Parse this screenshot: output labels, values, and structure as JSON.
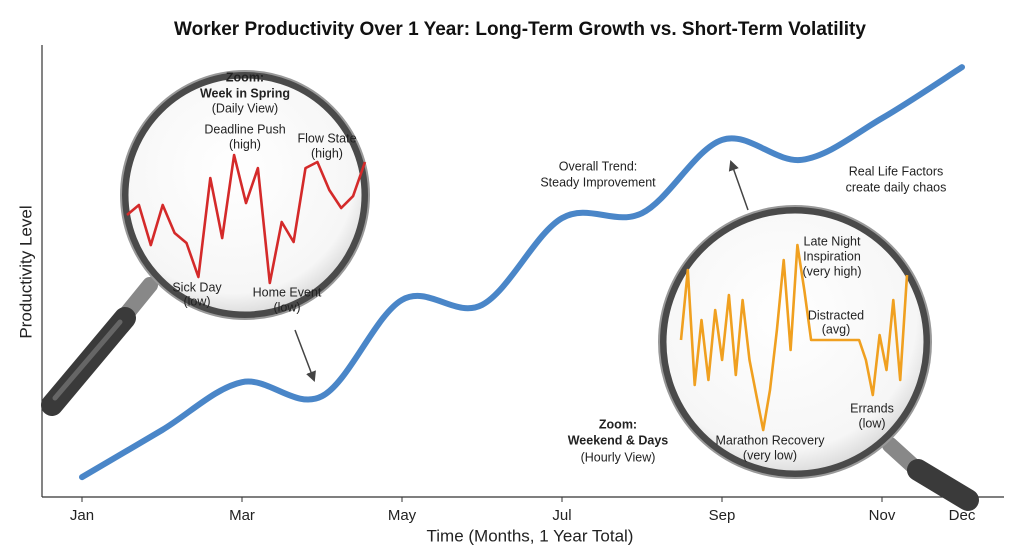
{
  "chart_data": {
    "type": "line",
    "title": "Worker Productivity Over 1 Year: Long-Term Growth vs. Short-Term Volatility",
    "x_label": "Time (Months, 1 Year Total)",
    "y_label": "Productivity Level",
    "xlim": [
      0.5,
      12.5
    ],
    "ylim": [
      0,
      100
    ],
    "xticks": [
      {
        "value": 1,
        "label": "Jan"
      },
      {
        "value": 3,
        "label": "Mar"
      },
      {
        "value": 5,
        "label": "May"
      },
      {
        "value": 7,
        "label": "Jul"
      },
      {
        "value": 9,
        "label": "Sep"
      },
      {
        "value": 11,
        "label": "Nov"
      },
      {
        "value": 12,
        "label": "Dec"
      }
    ],
    "series": [
      {
        "color": "#4a86c8",
        "x": [
          1,
          2,
          3,
          4,
          5,
          6,
          7,
          8,
          9,
          10,
          11,
          12
        ],
        "values": [
          4.4,
          14.8,
          25.4,
          22.3,
          43.6,
          42.5,
          61.7,
          62.8,
          79.0,
          74.6,
          83.8,
          95.1
        ]
      }
    ],
    "annotations": [
      {
        "lines": [
          "Overall Trend:",
          "Steady Improvement"
        ]
      },
      {
        "lines": [
          "Real Life Factors",
          "create daily chaos"
        ]
      }
    ],
    "insets": [
      {
        "title": [
          "Zoom:",
          "Week in Spring",
          "(Daily View)"
        ],
        "color": "#d42a2a",
        "ylim": [
          0,
          100
        ],
        "values": [
          53.6,
          60.7,
          32.1,
          60.7,
          40.7,
          33.6,
          9.3,
          80,
          37.1,
          96.4,
          62.1,
          87.1,
          5,
          48.6,
          34.3,
          87.1,
          91.4,
          71.4,
          58.6,
          67.1,
          91.4
        ],
        "annotations": [
          {
            "lines": [
              "Deadline Push",
              "(high)"
            ]
          },
          {
            "lines": [
              "Flow State",
              "(high)"
            ]
          },
          {
            "lines": [
              "Sick Day",
              "(low)"
            ]
          },
          {
            "lines": [
              "Home Event",
              "(low)"
            ]
          }
        ]
      },
      {
        "title": [
          "Zoom:",
          "Weekend & Days",
          "(Hourly View)"
        ],
        "color": "#f0a020",
        "ylim": [
          0,
          100
        ],
        "values": [
          50,
          85,
          27.5,
          60,
          30,
          65,
          40,
          72.5,
          32.5,
          70,
          40,
          22.5,
          5,
          25,
          55,
          90,
          45,
          97.5,
          75,
          50,
          50,
          50,
          50,
          50,
          50,
          50,
          50,
          40,
          22.5,
          52.5,
          35,
          70,
          30,
          82.5
        ],
        "annotations": [
          {
            "lines": [
              "Late Night",
              "Inspiration",
              "(very high)"
            ]
          },
          {
            "lines": [
              "Distracted",
              "(avg)"
            ]
          },
          {
            "lines": [
              "Errands",
              "(low)"
            ]
          },
          {
            "lines": [
              "Marathon Recovery",
              "(very low)"
            ]
          }
        ]
      }
    ]
  }
}
